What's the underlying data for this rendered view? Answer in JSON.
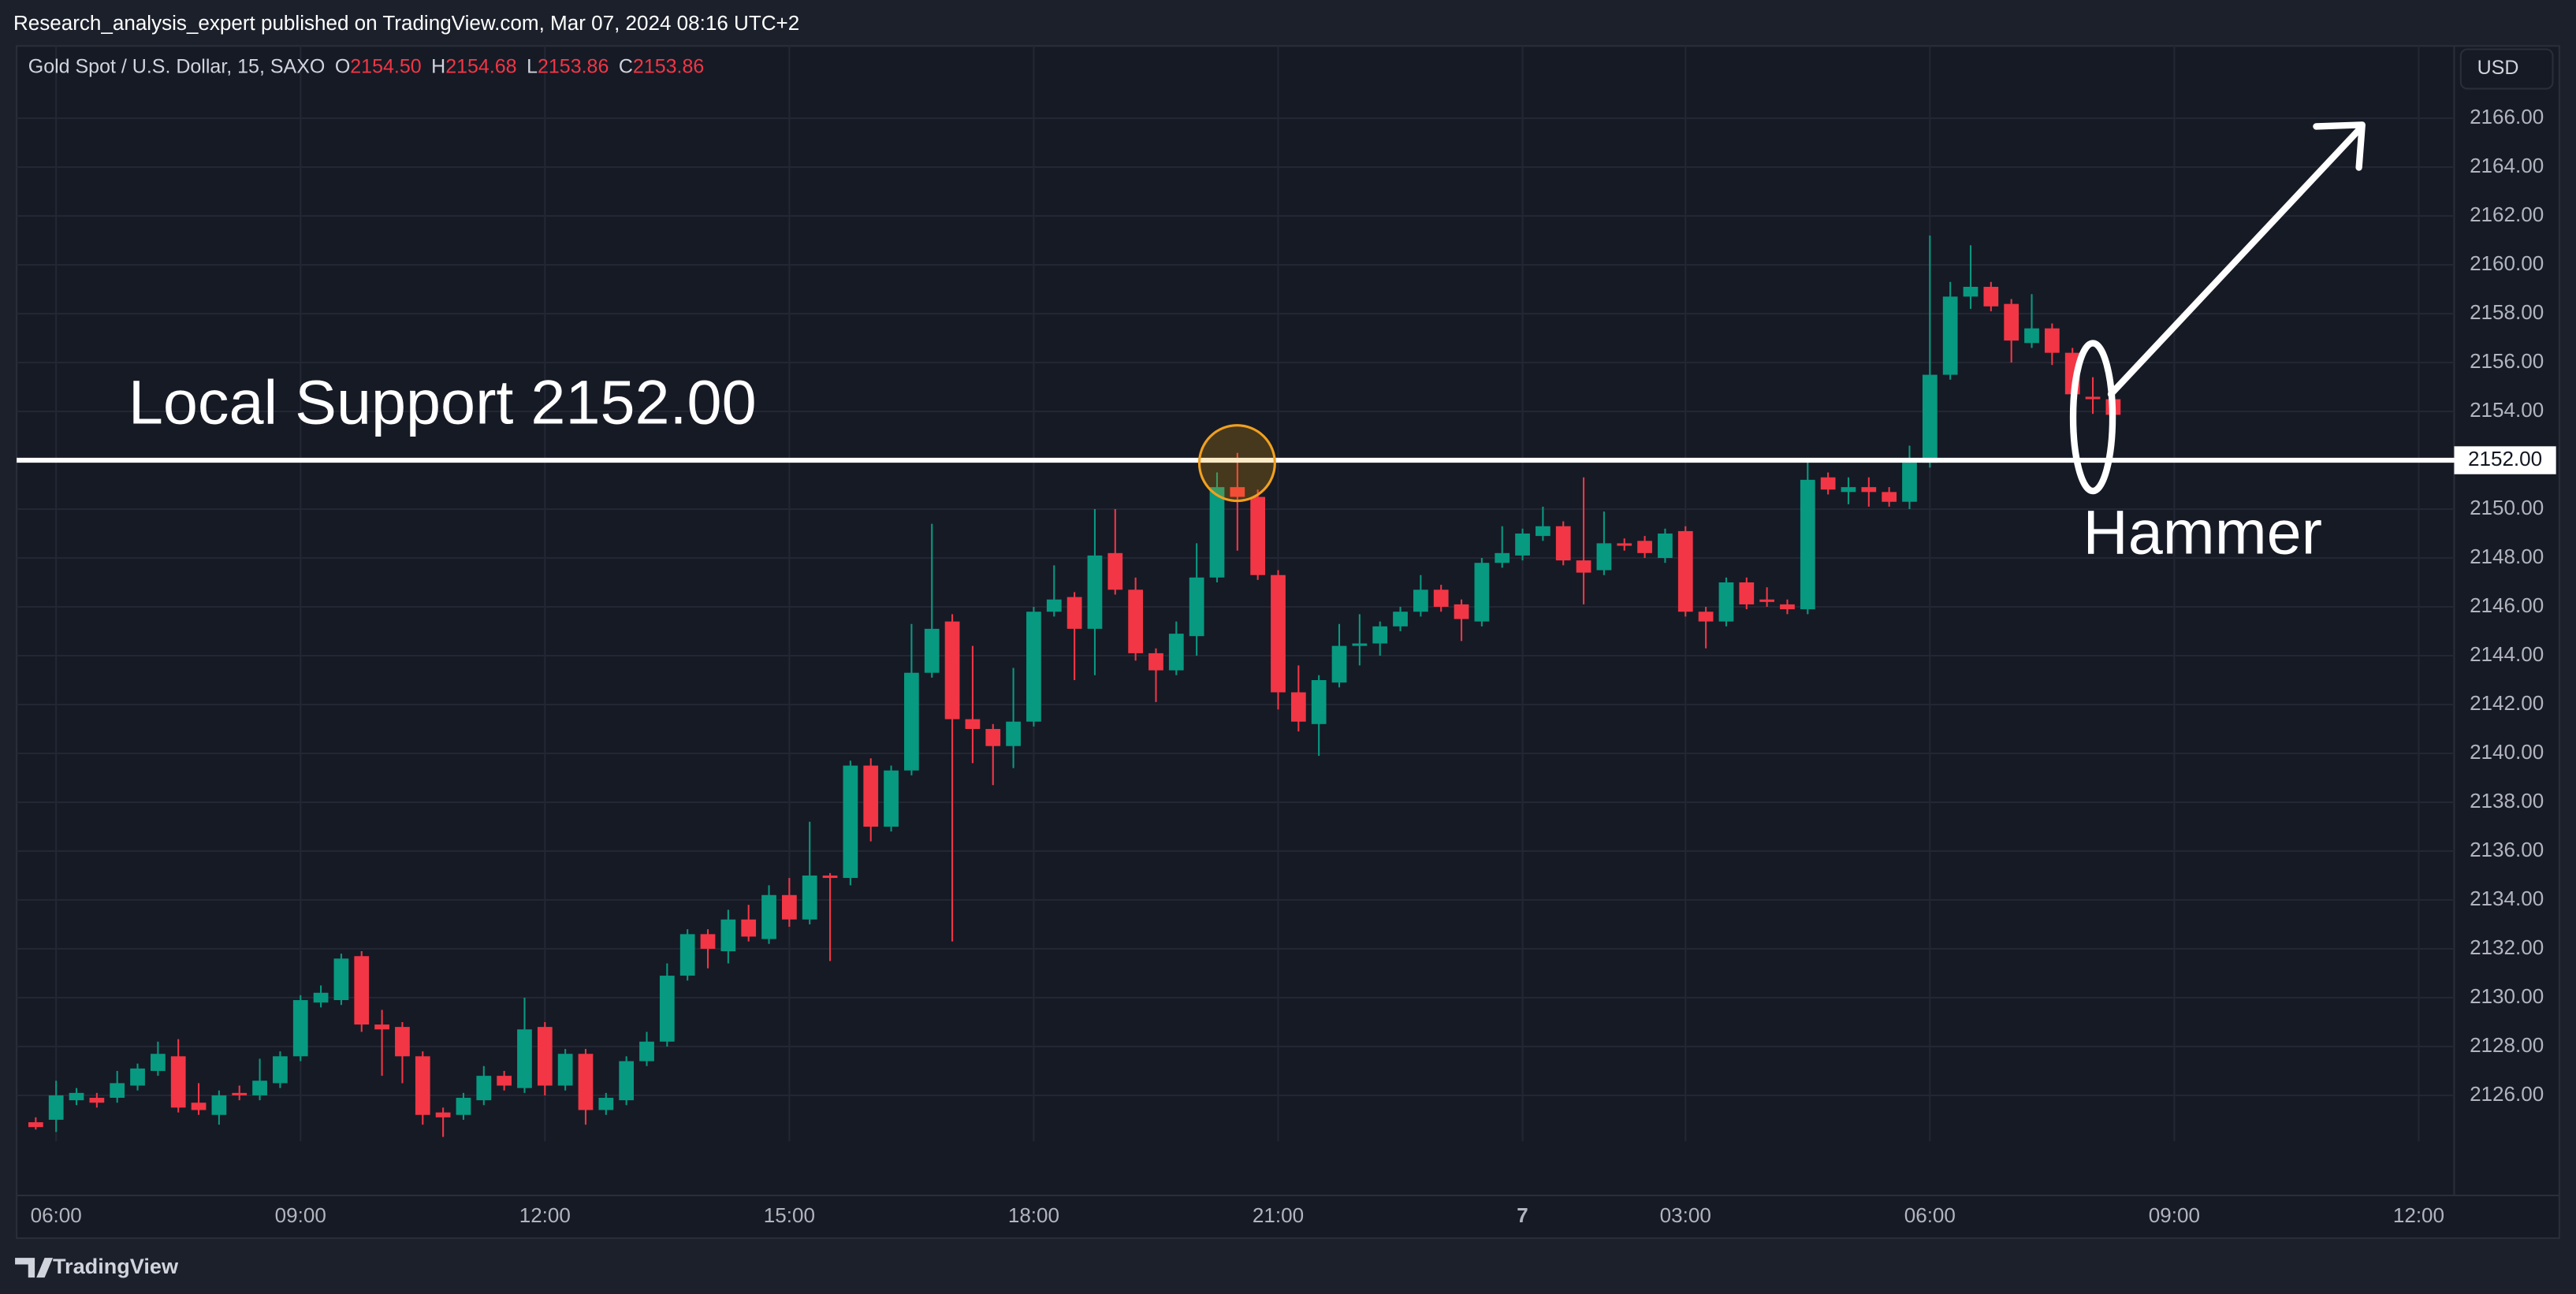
{
  "page": {
    "publisher": "Research_analysis_expert published on TradingView.com, Mar 07, 2024 08:16 UTC+2",
    "brand": "TradingView",
    "currency": "USD"
  },
  "chart_data": {
    "type": "candlestick",
    "title": "Gold Spot / U.S. Dollar, 15, SAXO",
    "legend": [
      {
        "label": "O",
        "value": "2154.50"
      },
      {
        "label": "H",
        "value": "2154.68"
      },
      {
        "label": "L",
        "value": "2153.86"
      },
      {
        "label": "C",
        "value": "2153.86"
      }
    ],
    "up_color": "#089981",
    "down_color": "#f23645",
    "categories": [
      null,
      "06:00",
      null,
      null,
      null,
      null,
      null,
      null,
      null,
      null,
      null,
      null,
      null,
      "09:00",
      null,
      null,
      null,
      null,
      null,
      null,
      null,
      null,
      null,
      null,
      null,
      "12:00",
      null,
      null,
      null,
      null,
      null,
      null,
      null,
      null,
      null,
      null,
      null,
      "15:00",
      null,
      null,
      null,
      null,
      null,
      null,
      null,
      null,
      null,
      null,
      null,
      "18:00",
      null,
      null,
      null,
      null,
      null,
      null,
      null,
      null,
      null,
      null,
      null,
      "21:00",
      null,
      null,
      null,
      null,
      null,
      null,
      null,
      null,
      null,
      null,
      null,
      "7",
      null,
      null,
      null,
      null,
      null,
      null,
      null,
      "03:00",
      null,
      null,
      null,
      null,
      null,
      null,
      null,
      null,
      null,
      null,
      null,
      "06:00",
      null,
      null,
      null,
      null,
      null,
      null,
      null,
      null,
      null,
      null,
      null,
      "09:00",
      null,
      null,
      null,
      null,
      null,
      null,
      null,
      null,
      null,
      null,
      null,
      "12:00",
      null
    ],
    "open": [
      2124.9,
      2125.0,
      2125.8,
      2125.9,
      2125.9,
      2126.4,
      2127.0,
      2127.6,
      2125.7,
      2125.2,
      2126.1,
      2126.0,
      2126.5,
      2127.6,
      2129.8,
      2129.9,
      2131.7,
      2128.9,
      2128.8,
      2127.6,
      2125.3,
      2125.2,
      2125.8,
      2126.8,
      2126.3,
      2128.8,
      2126.4,
      2127.7,
      2125.4,
      2125.8,
      2127.4,
      2128.2,
      2130.9,
      2132.6,
      2131.9,
      2133.2,
      2132.4,
      2134.2,
      2133.2,
      2135.0,
      2134.9,
      2139.5,
      2137.0,
      2139.3,
      2143.3,
      2145.4,
      2141.4,
      2141.0,
      2140.3,
      2141.3,
      2145.8,
      2146.4,
      2145.1,
      2148.2,
      2146.7,
      2144.1,
      2143.4,
      2144.8,
      2147.2,
      2150.9,
      2150.5,
      2147.3,
      2142.5,
      2141.2,
      2142.9,
      2144.4,
      2144.5,
      2145.2,
      2145.8,
      2146.7,
      2146.1,
      2145.4,
      2147.8,
      2148.1,
      2148.9,
      2149.3,
      2147.9,
      2147.5,
      2148.6,
      2148.7,
      2148.0,
      2149.1,
      2145.8,
      2145.4,
      2147.0,
      2146.3,
      2146.1,
      2145.9,
      2151.3,
      2150.7,
      2150.9,
      2150.7,
      2150.3,
      2151.9,
      2155.5,
      2158.7,
      2159.1,
      2158.4,
      2156.8,
      2157.4,
      2156.4,
      2154.6,
      2154.5,
      null,
      null,
      null,
      null,
      null,
      null,
      null,
      null,
      null,
      null,
      null,
      null,
      null,
      null,
      null,
      null
    ],
    "high": [
      2125.1,
      2126.6,
      2126.3,
      2126.1,
      2127.0,
      2127.3,
      2128.2,
      2128.3,
      2126.5,
      2126.2,
      2126.4,
      2127.5,
      2127.8,
      2130.1,
      2130.5,
      2131.8,
      2131.9,
      2129.5,
      2129.0,
      2127.8,
      2125.5,
      2126.1,
      2127.2,
      2127.0,
      2130.0,
      2129.0,
      2127.9,
      2127.9,
      2126.1,
      2127.6,
      2128.6,
      2131.4,
      2132.8,
      2132.8,
      2133.6,
      2133.8,
      2134.6,
      2134.9,
      2137.2,
      2135.1,
      2139.7,
      2139.8,
      2139.5,
      2145.3,
      2149.4,
      2145.7,
      2144.4,
      2141.2,
      2143.5,
      2146.0,
      2147.7,
      2146.6,
      2150.0,
      2150.0,
      2147.2,
      2144.3,
      2145.4,
      2148.6,
      2151.5,
      2152.3,
      2150.8,
      2147.5,
      2143.6,
      2143.2,
      2145.3,
      2145.7,
      2145.4,
      2146.0,
      2147.3,
      2146.9,
      2146.3,
      2148.0,
      2149.3,
      2149.2,
      2150.1,
      2149.5,
      2151.3,
      2149.9,
      2148.8,
      2148.9,
      2149.2,
      2149.3,
      2146.0,
      2147.2,
      2147.2,
      2146.8,
      2146.3,
      2152.1,
      2151.5,
      2151.3,
      2151.3,
      2150.9,
      2152.6,
      2161.2,
      2159.3,
      2160.8,
      2159.3,
      2158.6,
      2158.8,
      2157.6,
      2156.6,
      2155.4,
      2154.68,
      null,
      null,
      null,
      null,
      null,
      null,
      null,
      null,
      null,
      null,
      null,
      null,
      null,
      null,
      null,
      null
    ],
    "low": [
      2124.6,
      2124.5,
      2125.6,
      2125.5,
      2125.7,
      2126.2,
      2126.8,
      2125.3,
      2125.2,
      2124.8,
      2125.8,
      2125.8,
      2126.3,
      2127.4,
      2129.6,
      2129.7,
      2128.6,
      2126.8,
      2126.5,
      2124.8,
      2124.3,
      2125.0,
      2125.6,
      2126.2,
      2126.1,
      2126.0,
      2126.2,
      2124.8,
      2125.2,
      2125.6,
      2127.2,
      2128.0,
      2130.7,
      2131.2,
      2131.4,
      2132.3,
      2132.2,
      2132.9,
      2133.0,
      2131.5,
      2134.6,
      2136.4,
      2136.8,
      2139.1,
      2143.1,
      2132.3,
      2139.6,
      2138.7,
      2139.4,
      2141.1,
      2145.6,
      2143.0,
      2143.2,
      2146.5,
      2143.8,
      2142.1,
      2143.2,
      2144.0,
      2147.0,
      2148.3,
      2147.1,
      2141.8,
      2140.9,
      2139.9,
      2142.7,
      2143.6,
      2144.0,
      2145.0,
      2145.6,
      2145.8,
      2144.6,
      2145.2,
      2147.6,
      2147.9,
      2148.7,
      2147.7,
      2146.1,
      2147.3,
      2148.3,
      2148.0,
      2147.8,
      2145.6,
      2144.3,
      2145.2,
      2145.9,
      2146.0,
      2145.7,
      2145.7,
      2150.6,
      2150.2,
      2150.1,
      2150.1,
      2150.0,
      2151.7,
      2155.3,
      2158.2,
      2158.1,
      2156.0,
      2156.6,
      2155.9,
      2154.2,
      2153.9,
      2153.86,
      null,
      null,
      null,
      null,
      null,
      null,
      null,
      null,
      null,
      null,
      null,
      null,
      null,
      null,
      null,
      null
    ],
    "close": [
      2124.7,
      2126.0,
      2126.1,
      2125.7,
      2126.5,
      2127.1,
      2127.7,
      2125.5,
      2125.4,
      2126.0,
      2126.0,
      2126.6,
      2127.6,
      2129.9,
      2130.2,
      2131.6,
      2128.9,
      2128.7,
      2127.6,
      2125.2,
      2125.1,
      2125.9,
      2126.8,
      2126.4,
      2128.7,
      2126.4,
      2127.7,
      2125.4,
      2125.9,
      2127.4,
      2128.2,
      2130.9,
      2132.6,
      2132.0,
      2133.2,
      2132.5,
      2134.2,
      2133.2,
      2135.0,
      2134.9,
      2139.5,
      2137.0,
      2139.3,
      2143.3,
      2145.1,
      2141.4,
      2141.0,
      2140.3,
      2141.3,
      2145.8,
      2146.3,
      2145.1,
      2148.1,
      2146.7,
      2144.1,
      2143.4,
      2144.9,
      2147.2,
      2150.9,
      2150.5,
      2147.3,
      2142.5,
      2141.3,
      2143.0,
      2144.4,
      2144.5,
      2145.2,
      2145.8,
      2146.7,
      2146.0,
      2145.5,
      2147.8,
      2148.2,
      2149.0,
      2149.3,
      2147.9,
      2147.4,
      2148.6,
      2148.5,
      2148.2,
      2149.0,
      2145.8,
      2145.4,
      2147.0,
      2146.1,
      2146.2,
      2145.9,
      2151.2,
      2150.8,
      2150.9,
      2150.7,
      2150.3,
      2151.9,
      2155.5,
      2158.7,
      2159.1,
      2158.3,
      2156.9,
      2157.4,
      2156.4,
      2154.7,
      2154.5,
      2153.86,
      null,
      null,
      null,
      null,
      null,
      null,
      null,
      null,
      null,
      null,
      null,
      null,
      null,
      null,
      null,
      null
    ],
    "ylim": [
      2124.12,
      2168.96
    ],
    "yticks": [
      {
        "value": 2126,
        "label": "2126.00"
      },
      {
        "value": 2128,
        "label": "2128.00"
      },
      {
        "value": 2130,
        "label": "2130.00"
      },
      {
        "value": 2132,
        "label": "2132.00"
      },
      {
        "value": 2134,
        "label": "2134.00"
      },
      {
        "value": 2136,
        "label": "2136.00"
      },
      {
        "value": 2138,
        "label": "2138.00"
      },
      {
        "value": 2140,
        "label": "2140.00"
      },
      {
        "value": 2142,
        "label": "2142.00"
      },
      {
        "value": 2144,
        "label": "2144.00"
      },
      {
        "value": 2146,
        "label": "2146.00"
      },
      {
        "value": 2148,
        "label": "2148.00"
      },
      {
        "value": 2150,
        "label": "2150.00"
      },
      {
        "value": 2152,
        "label": "2152.00"
      },
      {
        "value": 2154,
        "label": "2154.00"
      },
      {
        "value": 2156,
        "label": "2156.00"
      },
      {
        "value": 2158,
        "label": "2158.00"
      },
      {
        "value": 2160,
        "label": "2160.00"
      },
      {
        "value": 2162,
        "label": "2162.00"
      },
      {
        "value": 2164,
        "label": "2164.00"
      },
      {
        "value": 2166,
        "label": "2166.00"
      }
    ],
    "grid": true,
    "support_line": {
      "value": 2152,
      "label": "2152.00"
    },
    "annotations": [
      "Local Support 2152.00",
      "Hammer"
    ]
  }
}
